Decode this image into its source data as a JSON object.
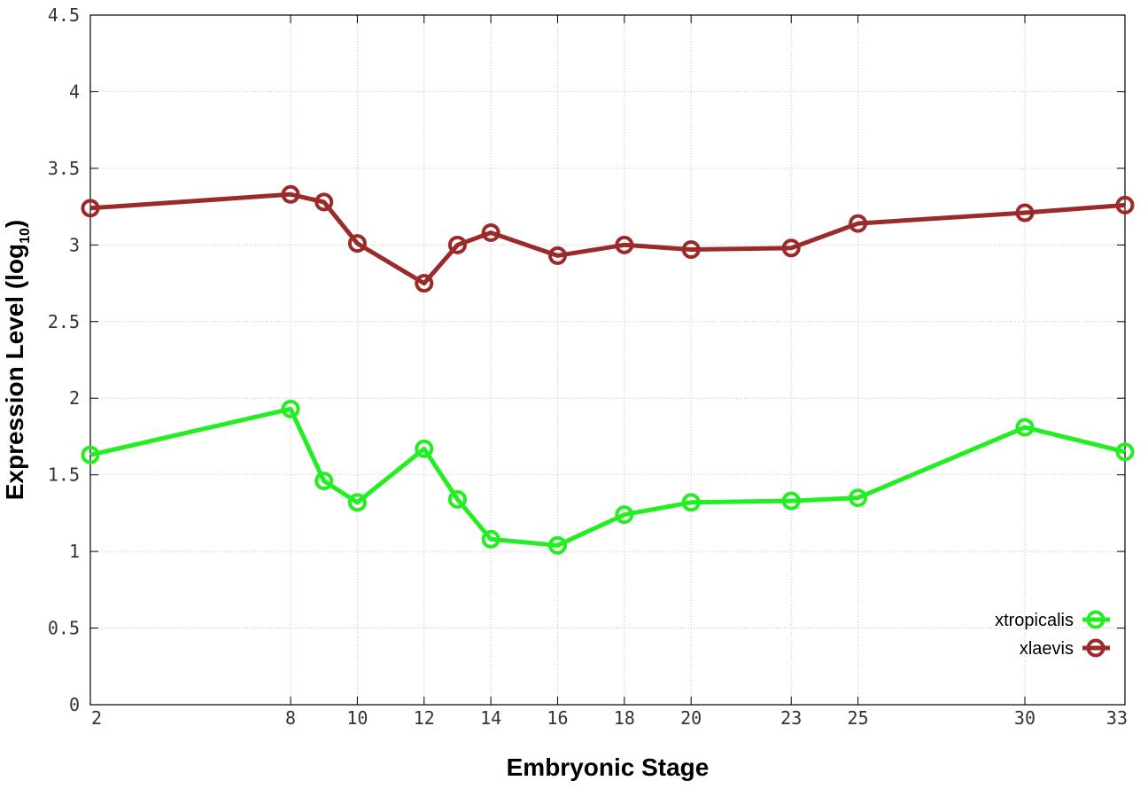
{
  "chart_data": {
    "type": "line",
    "xlabel": "Embryonic Stage",
    "ylabel_main": "Expression Level (log",
    "ylabel_sub": "10",
    "ylabel_close": ")",
    "x": [
      2,
      8,
      9,
      10,
      12,
      13,
      14,
      16,
      18,
      20,
      23,
      25,
      30,
      33
    ],
    "x_tick_labels": [
      "2",
      "8",
      "10",
      "12",
      "14",
      "16",
      "18",
      "20",
      "23",
      "25",
      "30",
      "33"
    ],
    "y_tick_labels": [
      "0",
      "0.5",
      "1",
      "1.5",
      "2",
      "2.5",
      "3",
      "3.5",
      "4",
      "4.5"
    ],
    "xlim": [
      2,
      33
    ],
    "ylim": [
      0,
      4.5
    ],
    "grid": true,
    "legend_position": "bottom-right",
    "series": [
      {
        "name": "xtropicalis",
        "color": "#22ee22",
        "values": [
          1.63,
          1.93,
          1.46,
          1.32,
          1.67,
          1.34,
          1.08,
          1.04,
          1.24,
          1.32,
          1.33,
          1.35,
          1.81,
          1.65
        ]
      },
      {
        "name": "xlaevis",
        "color": "#9b2a2a",
        "values": [
          3.24,
          3.33,
          3.28,
          3.01,
          2.75,
          3.0,
          3.08,
          2.93,
          3.0,
          2.97,
          2.98,
          3.14,
          3.21,
          3.26
        ]
      }
    ]
  }
}
